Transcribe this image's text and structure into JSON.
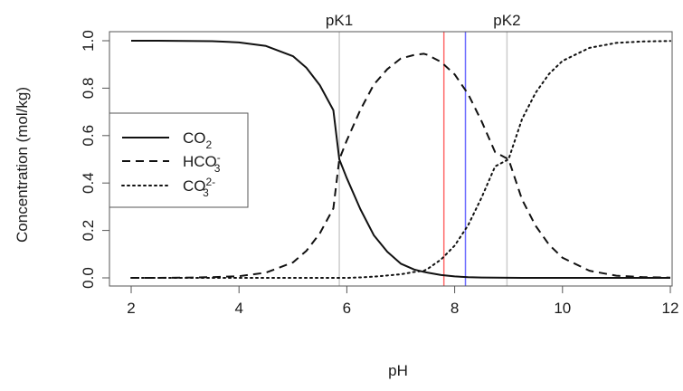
{
  "chart_data": {
    "type": "line",
    "title": "",
    "xlabel": "pH",
    "ylabel": "Concentration (mol/kg)",
    "xlim": [
      2,
      12
    ],
    "ylim": [
      0,
      1
    ],
    "x_ticks": [
      2,
      4,
      6,
      8,
      10,
      12
    ],
    "y_ticks": [
      0.0,
      0.2,
      0.4,
      0.6,
      0.8,
      1.0
    ],
    "y_tick_labels": [
      "0.0",
      "0.2",
      "0.4",
      "0.6",
      "0.8",
      "1.0"
    ],
    "grid": false,
    "legend": {
      "placement": "left",
      "entries": [
        {
          "base": "CO",
          "sub": "2",
          "sup": "",
          "style": "solid"
        },
        {
          "base": "HCO",
          "sub": "3",
          "sup": "-",
          "style": "dashed"
        },
        {
          "base": "CO",
          "sub": "3",
          "sup": "2-",
          "style": "dotted"
        }
      ]
    },
    "x": [
      2.0,
      2.5,
      3.0,
      3.5,
      4.0,
      4.5,
      5.0,
      5.25,
      5.5,
      5.75,
      5.86,
      6.0,
      6.25,
      6.5,
      6.75,
      7.0,
      7.25,
      7.43,
      7.5,
      7.75,
      8.0,
      8.25,
      8.5,
      8.75,
      9.0,
      9.25,
      9.5,
      9.75,
      10.0,
      10.5,
      11.0,
      11.5,
      12.0
    ],
    "series": [
      {
        "name": "CO2",
        "style": "solid",
        "values": [
          1.0,
          1.0,
          0.999,
          0.998,
          0.993,
          0.978,
          0.935,
          0.886,
          0.812,
          0.707,
          0.5,
          0.42,
          0.29,
          0.18,
          0.11,
          0.06,
          0.035,
          0.025,
          0.022,
          0.012,
          0.006,
          0.003,
          0.0015,
          0.0008,
          0.0004,
          0.0002,
          0.0001,
          0.0,
          0.0,
          0.0,
          0.0,
          0.0,
          0.0
        ]
      },
      {
        "name": "HCO3-",
        "style": "dashed",
        "values": [
          0.0,
          0.0,
          0.001,
          0.003,
          0.007,
          0.022,
          0.065,
          0.114,
          0.188,
          0.293,
          0.5,
          0.58,
          0.708,
          0.815,
          0.88,
          0.925,
          0.94,
          0.945,
          0.94,
          0.91,
          0.858,
          0.775,
          0.66,
          0.53,
          0.5,
          0.33,
          0.22,
          0.14,
          0.085,
          0.03,
          0.009,
          0.003,
          0.001
        ]
      },
      {
        "name": "CO3 2-",
        "style": "dotted",
        "values": [
          0.0,
          0.0,
          0.0,
          0.0,
          0.0,
          0.0,
          0.0,
          0.0,
          0.0,
          0.0,
          0.0,
          0.0,
          0.002,
          0.005,
          0.01,
          0.015,
          0.025,
          0.03,
          0.038,
          0.078,
          0.136,
          0.222,
          0.339,
          0.47,
          0.5,
          0.67,
          0.78,
          0.86,
          0.915,
          0.97,
          0.991,
          0.997,
          0.999
        ]
      }
    ],
    "vertical_lines": [
      {
        "x": 5.86,
        "label": "pK1",
        "color": "#cccccc"
      },
      {
        "x": 7.8,
        "label": "",
        "color": "#ff6b6b"
      },
      {
        "x": 8.2,
        "label": "",
        "color": "#6b6bff"
      },
      {
        "x": 8.97,
        "label": "pK2",
        "color": "#cccccc"
      }
    ]
  },
  "colors": {
    "line": "#111111",
    "axis": "#555555",
    "pk_line": "#cccccc",
    "red_line": "#ff6b6b",
    "blue_line": "#6b6bff"
  }
}
